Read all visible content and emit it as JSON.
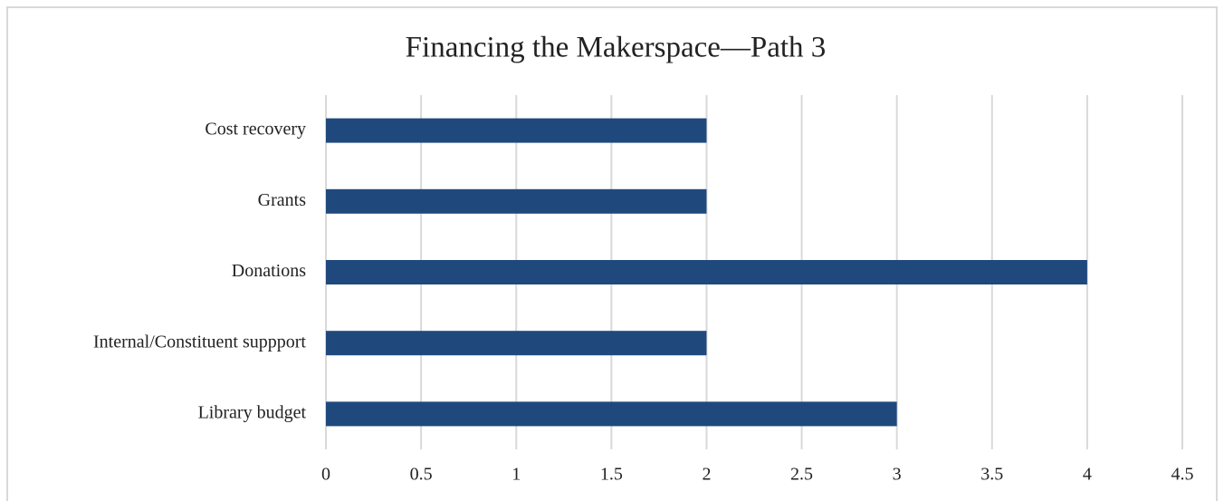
{
  "chart_data": {
    "type": "bar",
    "orientation": "horizontal",
    "title": "Financing the Makerspace—Path 3",
    "categories": [
      "Cost recovery",
      "Grants",
      "Donations",
      "Internal/Constituent suppport",
      "Library budget"
    ],
    "values": [
      2,
      2,
      4,
      2,
      3
    ],
    "color": "#1f497d",
    "xlim": [
      0,
      4.5
    ],
    "xticks": [
      0,
      0.5,
      1,
      1.5,
      2,
      2.5,
      3,
      3.5,
      4,
      4.5
    ],
    "grid": true
  }
}
